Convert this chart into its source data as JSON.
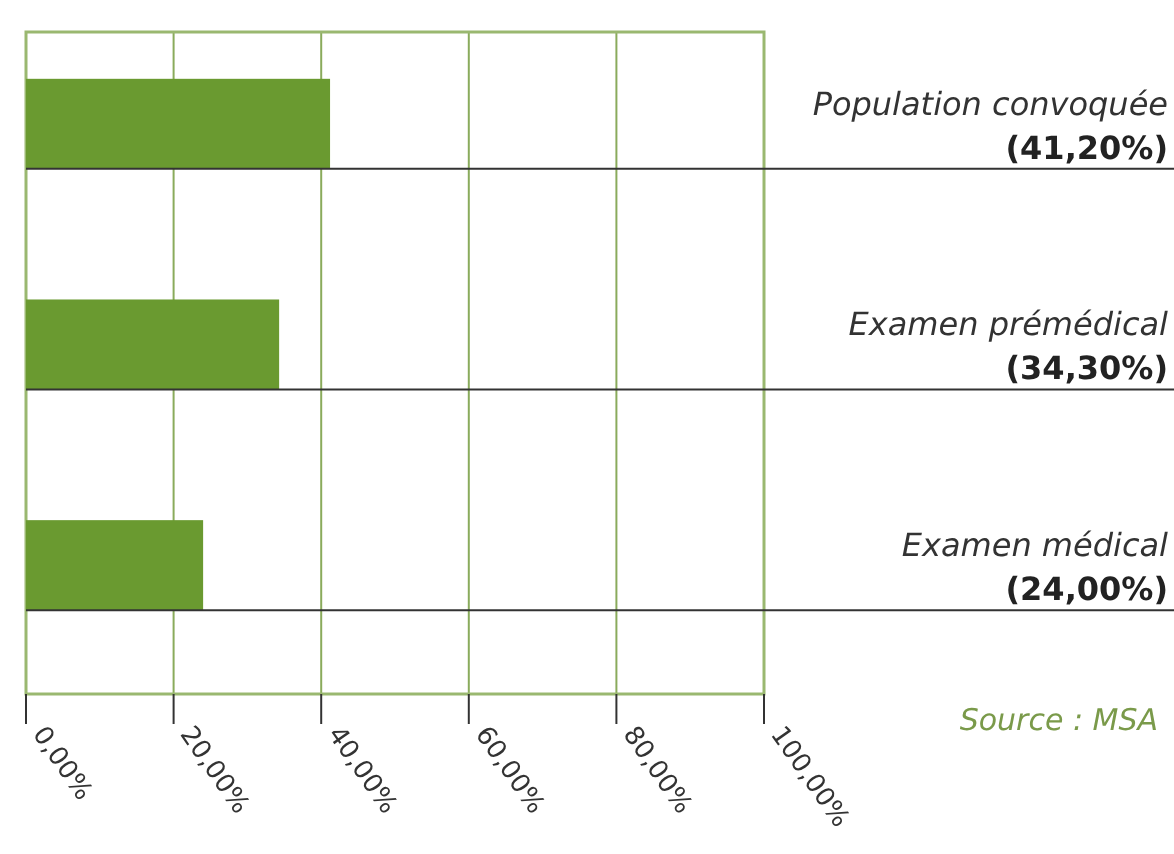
{
  "chart_data": {
    "type": "bar",
    "orientation": "horizontal",
    "categories": [
      "Population convoquée",
      "Examen prémédical",
      "Examen médical"
    ],
    "values": [
      41.2,
      34.3,
      24.0
    ],
    "value_labels": [
      "(41,20%)",
      "(34,30%)",
      "(24,00%)"
    ],
    "color": "#6a9a30",
    "xlim": [
      0,
      100
    ],
    "xticks": [
      {
        "value": 0,
        "label": "0,00%"
      },
      {
        "value": 20,
        "label": "20,00%"
      },
      {
        "value": 40,
        "label": "40,00%"
      },
      {
        "value": 60,
        "label": "60,00%"
      },
      {
        "value": 80,
        "label": "80,00%"
      },
      {
        "value": 100,
        "label": "100,00%"
      }
    ],
    "grid": "x",
    "annotations": [
      "Source : MSA"
    ]
  }
}
